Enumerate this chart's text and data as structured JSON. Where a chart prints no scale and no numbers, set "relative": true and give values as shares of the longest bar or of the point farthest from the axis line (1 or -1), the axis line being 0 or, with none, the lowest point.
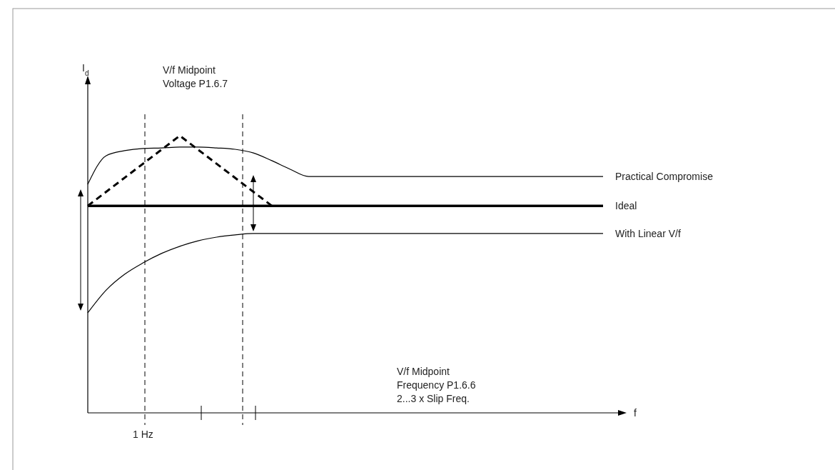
{
  "chart_data": {
    "type": "line",
    "relative": true,
    "xlabel": "f",
    "categories": [
      null,
      null,
      null,
      null,
      null,
      null,
      null,
      null,
      null,
      null,
      null,
      null,
      null,
      null,
      null,
      null,
      null,
      null,
      null,
      null,
      null,
      null,
      null,
      null,
      null,
      null,
      null,
      null,
      null
    ],
    "series": [
      {
        "name": "Practical Compromise",
        "color": "#000000",
        "values": [
          0.825,
          0.928,
          0.946,
          0.954,
          0.956,
          0.959,
          0.959,
          0.956,
          0.951,
          0.938,
          0.91,
          0.879,
          0.853,
          0.853,
          0.853,
          0.853,
          0.853,
          0.853,
          0.853,
          0.853,
          0.853,
          0.853,
          0.853,
          0.853,
          0.853,
          0.853,
          0.853,
          0.853,
          0.853
        ]
      },
      {
        "name": "Ideal",
        "color": "#000000",
        "values": [
          0.747,
          0.747,
          0.747,
          0.747,
          0.747,
          0.747,
          0.747,
          0.747,
          0.747,
          0.747,
          0.747,
          0.747,
          0.747,
          0.747,
          0.747,
          0.747,
          0.747,
          0.747,
          0.747,
          0.747,
          0.747,
          0.747,
          0.747,
          0.747,
          0.747,
          0.747,
          0.747,
          0.747,
          0.747
        ]
      },
      {
        "name": "With Linear V/f",
        "color": "#000000",
        "values": [
          0.361,
          0.443,
          0.5,
          0.541,
          0.575,
          0.601,
          0.621,
          0.634,
          0.642,
          0.647,
          0.647,
          0.647,
          0.647,
          0.647,
          0.647,
          0.647,
          0.647,
          0.647,
          0.647,
          0.647,
          0.647,
          0.647,
          0.647,
          0.647,
          0.647,
          0.647,
          0.647,
          0.647,
          0.647
        ]
      },
      {
        "color": "#000000",
        "line_style": "dashed",
        "values": [
          0.747,
          null,
          null,
          null,
          null,
          1,
          null,
          null,
          null,
          null,
          0.747,
          null,
          null,
          null,
          null,
          null,
          null,
          null,
          null,
          null,
          null,
          null,
          null,
          null,
          null,
          null,
          null,
          null,
          null
        ]
      }
    ],
    "annotations": [
      "I$_{d}$",
      "V/f Midpoint\nVoltage P1.6.7",
      "V/f Midpoint\nFrequency P1.6.6\n2...3 x Slip Freq.",
      "1 Hz"
    ],
    "marker": "none"
  }
}
